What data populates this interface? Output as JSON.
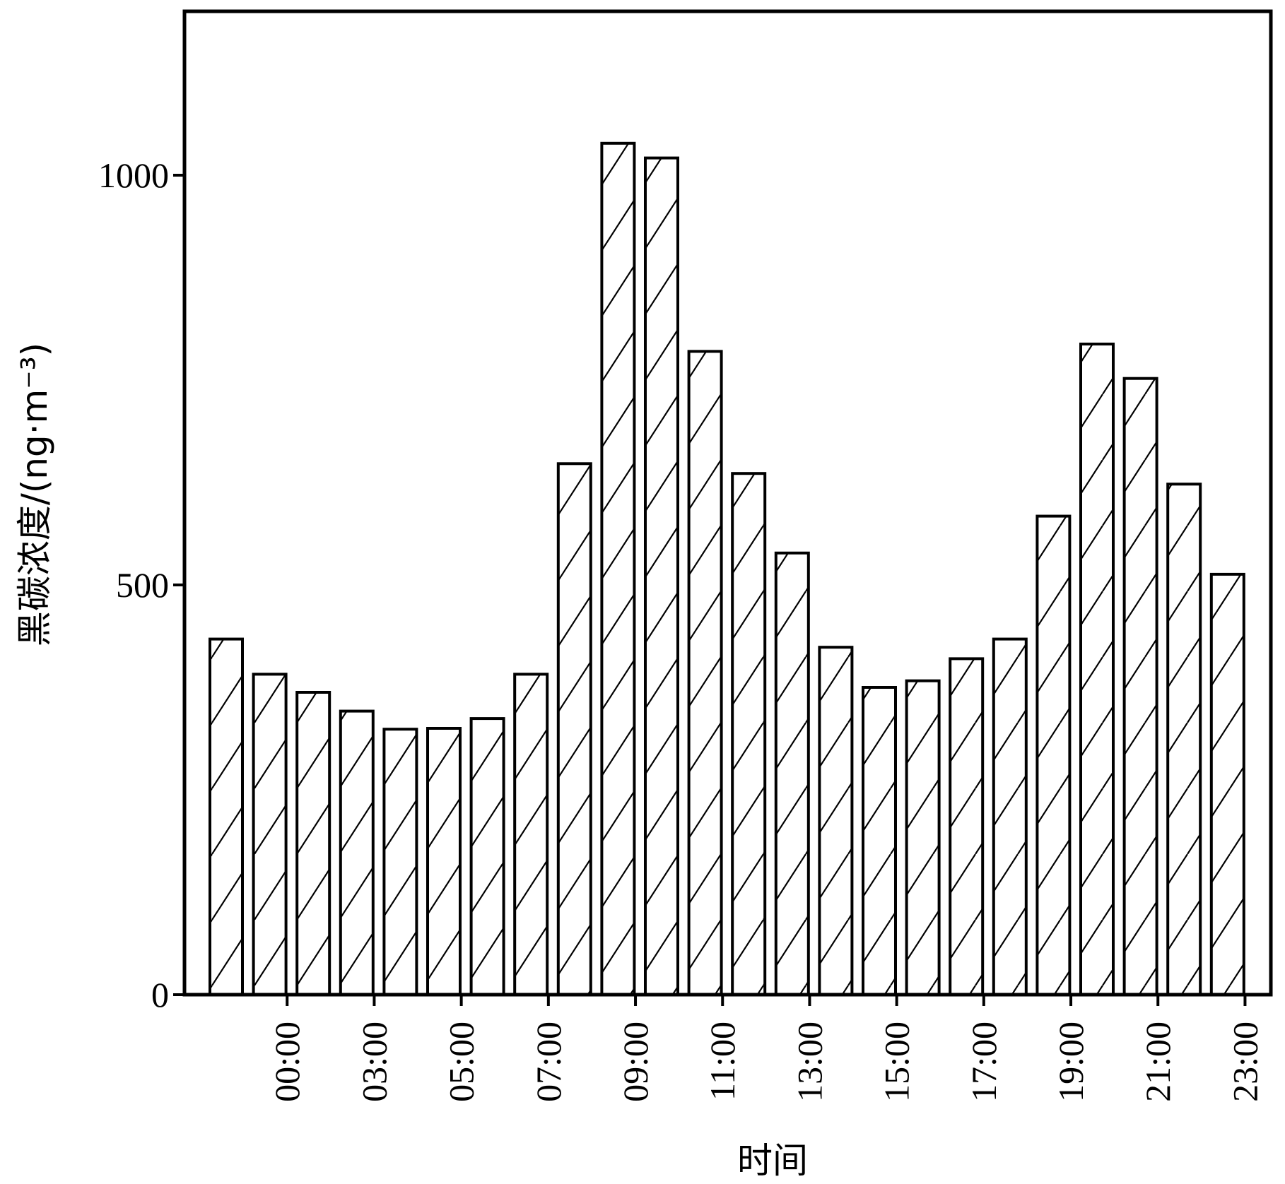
{
  "chart_data": {
    "type": "bar",
    "title": "",
    "xlabel": "时间",
    "ylabel": "黑碳浓度/(ng·m⁻³)",
    "ylim": [
      0,
      1200
    ],
    "yticks": [
      0,
      500,
      1000
    ],
    "grid": false,
    "legend": "none",
    "bar_fill": "#ffffff",
    "bar_stroke": "#000000",
    "bar_pattern": "diagonal-hatch",
    "values": [
      434,
      391,
      369,
      346,
      324,
      325,
      337,
      391,
      648,
      1039,
      1021,
      785,
      636,
      539,
      424,
      375,
      383,
      410,
      434,
      584,
      794,
      752,
      623,
      513
    ],
    "x_ticks": [
      "00:00",
      "03:00",
      "05:00",
      "07:00",
      "09:00",
      "11:00",
      "13:00",
      "15:00",
      "17:00",
      "19:00",
      "21:00",
      "23:00"
    ],
    "x_tick_bar_index": [
      1.4,
      3.4,
      5.4,
      7.4,
      9.4,
      11.4,
      13.4,
      15.4,
      17.4,
      19.4,
      21.4,
      23.4
    ]
  }
}
